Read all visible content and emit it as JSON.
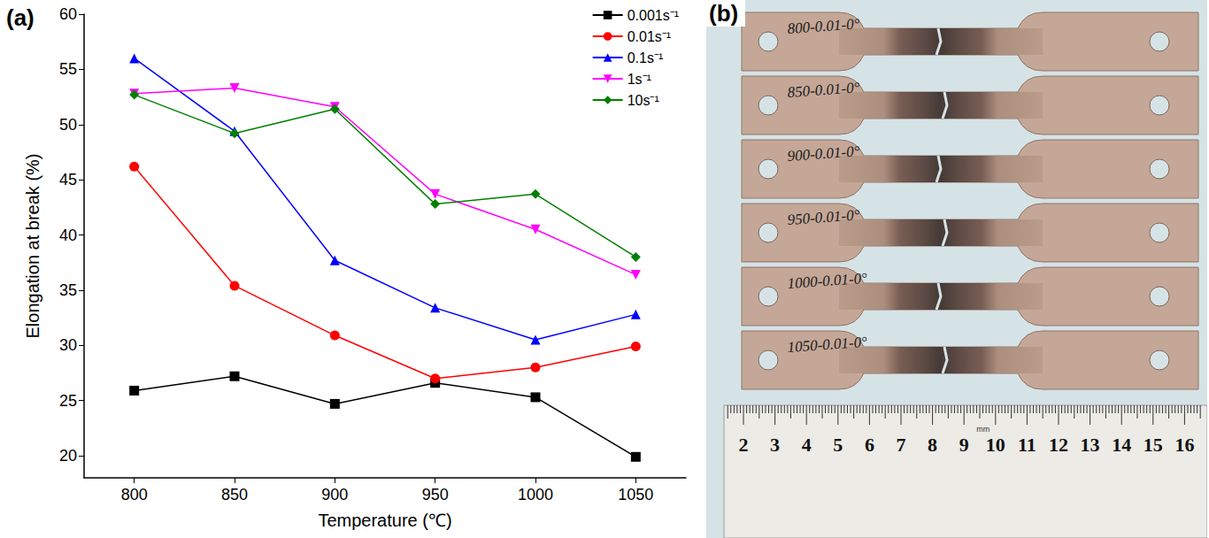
{
  "chart_data": {
    "type": "line",
    "panel_label": "(a)",
    "x_label": "Temperature (℃)",
    "y_label": "Elongation at break (%)",
    "x": [
      800,
      850,
      900,
      950,
      1000,
      1050
    ],
    "xlim": [
      775,
      1075
    ],
    "xticks": [
      800,
      850,
      900,
      950,
      1000,
      1050
    ],
    "ylim": [
      18,
      60
    ],
    "yticks": [
      20,
      25,
      30,
      35,
      40,
      45,
      50,
      55,
      60
    ],
    "grid": false,
    "legend": "upper right",
    "series": [
      {
        "name": "0.001s⁻¹",
        "color": "#000000",
        "marker": "square",
        "values": [
          25.9,
          27.2,
          24.7,
          26.6,
          25.3,
          19.9
        ]
      },
      {
        "name": "0.01s⁻¹",
        "color": "#ff0000",
        "marker": "circle",
        "values": [
          46.2,
          35.4,
          30.9,
          27.0,
          28.0,
          29.9
        ]
      },
      {
        "name": "0.1s⁻¹",
        "color": "#0000ff",
        "marker": "triangle",
        "values": [
          56.0,
          49.4,
          37.7,
          33.4,
          30.5,
          32.8
        ]
      },
      {
        "name": "1s⁻¹",
        "color": "#ff00ff",
        "marker": "down-triangle",
        "values": [
          52.8,
          53.3,
          51.6,
          43.7,
          40.5,
          36.4
        ]
      },
      {
        "name": "10s⁻¹",
        "color": "#008000",
        "marker": "diamond",
        "values": [
          52.7,
          49.2,
          51.4,
          42.8,
          43.7,
          38.0
        ]
      }
    ]
  },
  "photo": {
    "panel_label": "(b)",
    "specimens": [
      "800-0.01-0°",
      "850-0.01-0°",
      "900-0.01-0°",
      "950-0.01-0°",
      "1000-0.01-0°",
      "1050-0.01-0°"
    ],
    "ruler": {
      "unit": "mm",
      "labels": [
        2,
        3,
        4,
        5,
        6,
        7,
        8,
        9,
        10,
        11,
        12,
        13,
        14,
        15,
        16
      ]
    }
  }
}
